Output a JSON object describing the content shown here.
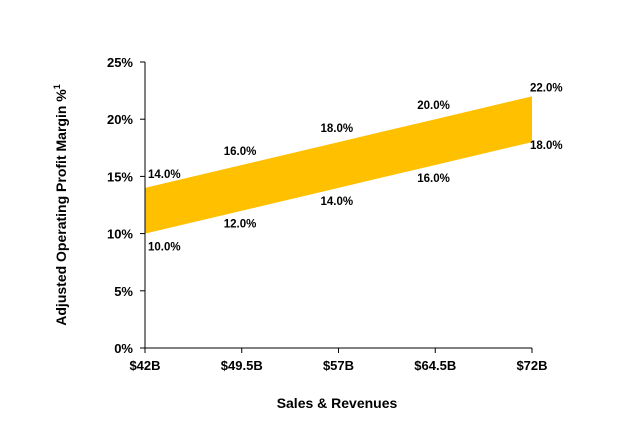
{
  "chart_data": {
    "type": "area",
    "title": "",
    "xlabel": "Sales & Revenues",
    "ylabel": "Adjusted Operating Profit Margin %",
    "ylabel_superscript": "1",
    "categories": [
      "$42B",
      "$49.5B",
      "$57B",
      "$64.5B",
      "$72B"
    ],
    "x": [
      42,
      49.5,
      57,
      64.5,
      72
    ],
    "xlim": [
      42,
      72
    ],
    "ylim": [
      0,
      25
    ],
    "yticks": [
      0,
      5,
      10,
      15,
      20,
      25
    ],
    "ytick_labels": [
      "0%",
      "5%",
      "10%",
      "15%",
      "20%",
      "25%"
    ],
    "grid": false,
    "band_color": "#FFC000",
    "series": [
      {
        "name": "upper",
        "values": [
          14,
          16,
          18,
          20,
          22
        ],
        "labels": [
          "14.0%",
          "16.0%",
          "18.0%",
          "20.0%",
          "22.0%"
        ]
      },
      {
        "name": "lower",
        "values": [
          10,
          12,
          14,
          16,
          18
        ],
        "labels": [
          "10.0%",
          "12.0%",
          "14.0%",
          "16.0%",
          "18.0%"
        ]
      }
    ]
  }
}
